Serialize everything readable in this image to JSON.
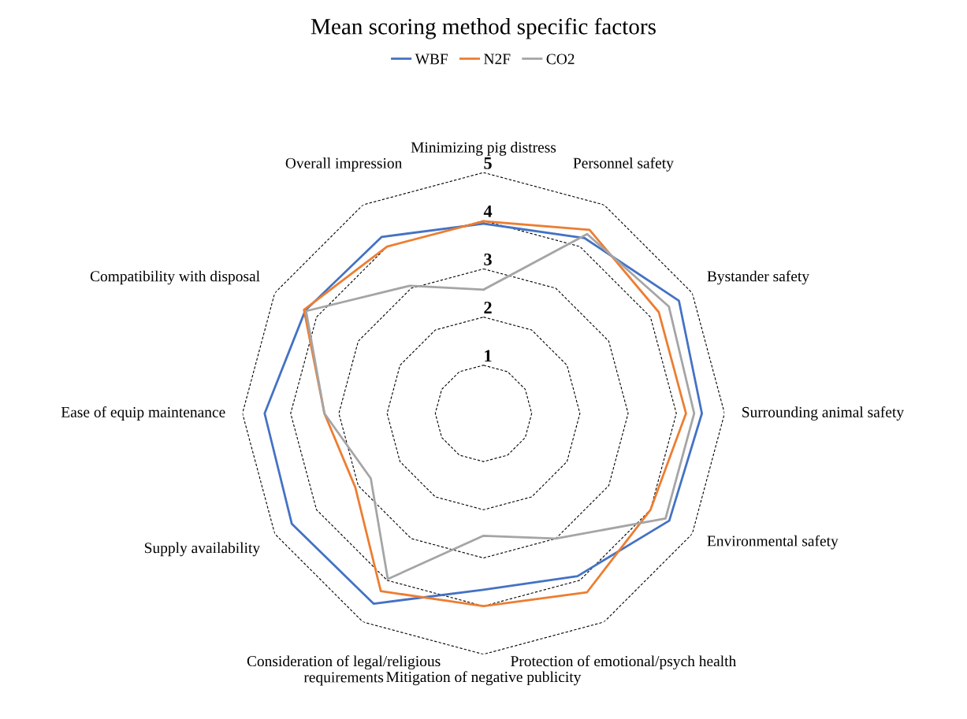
{
  "chart_data": {
    "type": "radar",
    "title": "Mean scoring method specific factors",
    "categories": [
      "Minimizing pig distress",
      "Personnel safety",
      "Bystander safety",
      "Surrounding animal safety",
      "Environmental safety",
      "Protection of emotional/psych health",
      "Mitigation of negative publicity",
      "Consideration of legal/religious\nrequirements",
      "Supply availability",
      "Ease of equip maintenance",
      "Compatibility with disposal",
      "Overall impression"
    ],
    "series": [
      {
        "name": "WBF",
        "color": "#4472c4",
        "values": [
          3.94,
          4.2,
          4.68,
          4.53,
          4.45,
          3.9,
          3.66,
          4.56,
          4.59,
          4.54,
          4.27,
          4.23
        ]
      },
      {
        "name": "N2F",
        "color": "#ed7d31",
        "values": [
          3.99,
          4.4,
          4.2,
          4.2,
          4.0,
          4.29,
          4.0,
          4.26,
          3.07,
          3.3,
          4.3,
          4.0
        ]
      },
      {
        "name": "CO2",
        "color": "#a5a5a5",
        "values": [
          2.57,
          4.3,
          4.44,
          4.37,
          4.36,
          3.0,
          2.54,
          3.97,
          2.7,
          3.3,
          4.25,
          3.06
        ]
      }
    ],
    "ylim": [
      0,
      5
    ],
    "yticks": [
      1,
      2,
      3,
      4,
      5
    ],
    "grid": true,
    "legend": "top",
    "marker": "none",
    "line_style": "solid"
  }
}
